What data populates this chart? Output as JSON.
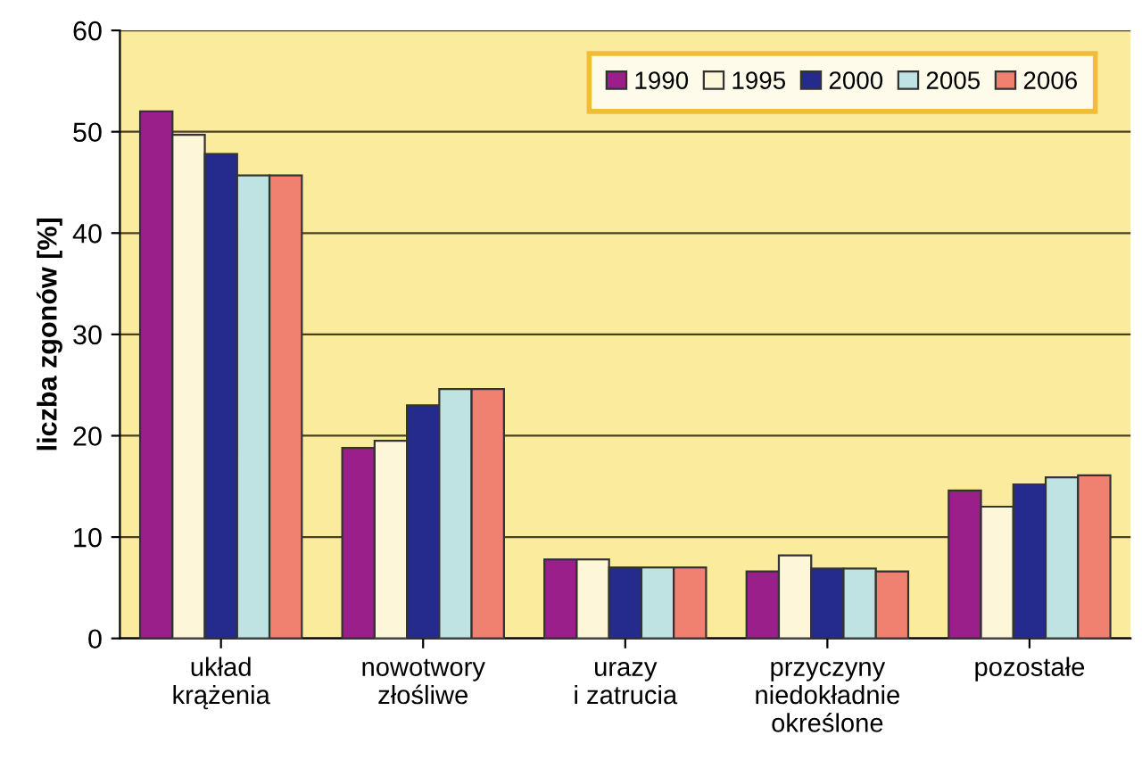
{
  "chart_data": {
    "type": "bar",
    "ylabel": "liczba zgonów [%]",
    "categories": [
      "układ\nkrążenia",
      "nowotwory\nzłośliwe",
      "urazy\ni zatrucia",
      "przyczyny\nniedokładnie\nokreślone",
      "pozostałe"
    ],
    "series": [
      {
        "name": "1990",
        "color": "#9b1f8a",
        "values": [
          52,
          18.8,
          7.8,
          6.6,
          14.6
        ]
      },
      {
        "name": "1995",
        "color": "#fdf6d8",
        "values": [
          49.7,
          19.5,
          7.8,
          8.2,
          13.0
        ]
      },
      {
        "name": "2000",
        "color": "#252b8c",
        "values": [
          47.8,
          23,
          7.0,
          6.9,
          15.2
        ]
      },
      {
        "name": "2005",
        "color": "#bfe3e3",
        "values": [
          45.7,
          24.6,
          7.0,
          6.9,
          15.9
        ]
      },
      {
        "name": "2006",
        "color": "#f08070",
        "values": [
          45.7,
          24.6,
          7.0,
          6.6,
          16.1
        ]
      }
    ],
    "ylim": [
      0,
      60
    ],
    "yticks": [
      0,
      10,
      20,
      30,
      40,
      50,
      60
    ],
    "grid": "y",
    "legend": "top right"
  }
}
